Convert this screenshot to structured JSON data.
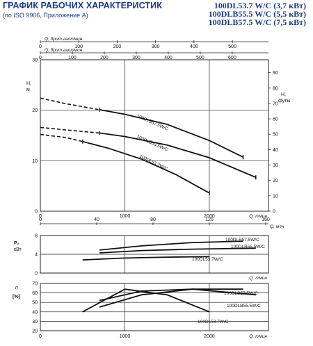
{
  "header": {
    "title": "ГРАФИК РАБОЧИХ ХАРАКТЕРИСТИК",
    "subtitle": "(по ISO 9906, Приложение А)",
    "models": [
      "100DL53.7 W/C (3,7 кВт)",
      "100DLB55.5 W/C (5,5 кВт)",
      "100DLB57.5 W/C (7,5 кВт)"
    ]
  },
  "colors": {
    "heading": "#1a3c88",
    "curve": "#111111",
    "grid": "#222222"
  },
  "top_scales": [
    {
      "label": "Q, брит.галл/мин",
      "ticks": [
        "0",
        "100",
        "200",
        "300",
        "400",
        "500"
      ],
      "values": [
        0,
        100,
        200,
        300,
        400,
        500
      ]
    },
    {
      "label": "Q, брит.галл/мин",
      "ticks": [
        "0",
        "100",
        "200",
        "300",
        "400",
        "500",
        "600"
      ],
      "values": [
        0,
        100,
        200,
        300,
        400,
        500,
        600
      ]
    }
  ],
  "chart_data": [
    {
      "type": "line",
      "name": "head",
      "xlabel": "Q, л/мин",
      "ylabel": "H, м",
      "y2label": "H, футы",
      "xlim": [
        0,
        2700
      ],
      "ylim": [
        0,
        30
      ],
      "y2lim": [
        0,
        98.4
      ],
      "xticks": [
        0,
        1000,
        2000
      ],
      "yticks": [
        0,
        10,
        20,
        30
      ],
      "y2ticks": [
        0,
        10,
        20,
        30,
        40,
        50,
        60,
        70,
        80,
        90
      ],
      "grid": true,
      "series": [
        {
          "name": "100DLB57.5W/C",
          "x": [
            0,
            300,
            700,
            1000,
            1500,
            2000,
            2400
          ],
          "y": [
            22.4,
            21.3,
            20.1,
            19.2,
            17.2,
            14.0,
            10.7
          ],
          "dash_until": 700
        },
        {
          "name": "100DLB55.5W/C",
          "x": [
            0,
            300,
            700,
            1000,
            1500,
            2000,
            2550
          ],
          "y": [
            16.6,
            16.1,
            15.5,
            14.8,
            13.1,
            10.6,
            6.7
          ],
          "dash_until": 700
        },
        {
          "name": "100DL53.7W/C",
          "x": [
            0,
            300,
            500,
            800,
            1200,
            1600,
            2000
          ],
          "y": [
            15.2,
            14.6,
            13.8,
            12.5,
            10.3,
            7.3,
            3.6
          ],
          "dash_until": 500
        }
      ],
      "labels": [
        "100DLB57.5W/C",
        "100DLB55.5W/C",
        "100DL53.7W/C"
      ]
    },
    {
      "type": "line",
      "name": "power",
      "xlabel": "Q, л/мин",
      "ylabel": "P2 кВт",
      "ylim": [
        0,
        8
      ],
      "yticks": [
        0,
        4,
        8
      ],
      "grid": true,
      "series": [
        {
          "name": "100DLB57.5W/C",
          "x": [
            700,
            1200,
            1800,
            2400
          ],
          "y": [
            4.9,
            5.8,
            6.5,
            6.8
          ]
        },
        {
          "name": "100DLB55.5W/C",
          "x": [
            700,
            1200,
            1800,
            2550
          ],
          "y": [
            4.3,
            4.8,
            5.1,
            5.3
          ]
        },
        {
          "name": "100DL53.7W/C",
          "x": [
            500,
            1000,
            1500,
            2000
          ],
          "y": [
            2.8,
            3.2,
            3.4,
            3.5
          ]
        }
      ],
      "labels": [
        "100DLB57.5W/C",
        "100DLB55.5W/C",
        "100DL53.7W/C"
      ]
    },
    {
      "type": "line",
      "name": "efficiency",
      "xlabel": "Q, л/мин",
      "ylabel": "η [%]",
      "xlim": [
        0,
        2700
      ],
      "xticks": [
        0,
        1000,
        2000
      ],
      "ylim": [
        20,
        70
      ],
      "yticks": [
        20,
        30,
        40,
        50,
        60,
        70
      ],
      "grid": true,
      "series": [
        {
          "name": "100DLB57.5W/C",
          "x": [
            700,
            1200,
            1800,
            2400
          ],
          "y": [
            45,
            58,
            64,
            64
          ]
        },
        {
          "name": "100DLB55.5W/C",
          "x": [
            700,
            1200,
            1800,
            2550
          ],
          "y": [
            52,
            62,
            64,
            58
          ]
        },
        {
          "name": "100DL53.7W/C",
          "x": [
            500,
            1000,
            1500,
            2000
          ],
          "y": [
            40,
            64,
            58,
            40
          ]
        }
      ],
      "labels": [
        "100DLB57.5W/C",
        "100DLB55.5W/C",
        "100DL53.7W/C"
      ]
    }
  ],
  "bottom_scales": {
    "q_m3h_ticks": [
      "0",
      "40",
      "80",
      "120",
      "160"
    ],
    "q_m3h_values": [
      0,
      40,
      80,
      120,
      160
    ],
    "q_m3h_label": "Q, м³/ч",
    "q_lmin_ticks": [
      "0",
      "1000",
      "2000"
    ],
    "q_lmin_label": "Q, л/мин"
  }
}
